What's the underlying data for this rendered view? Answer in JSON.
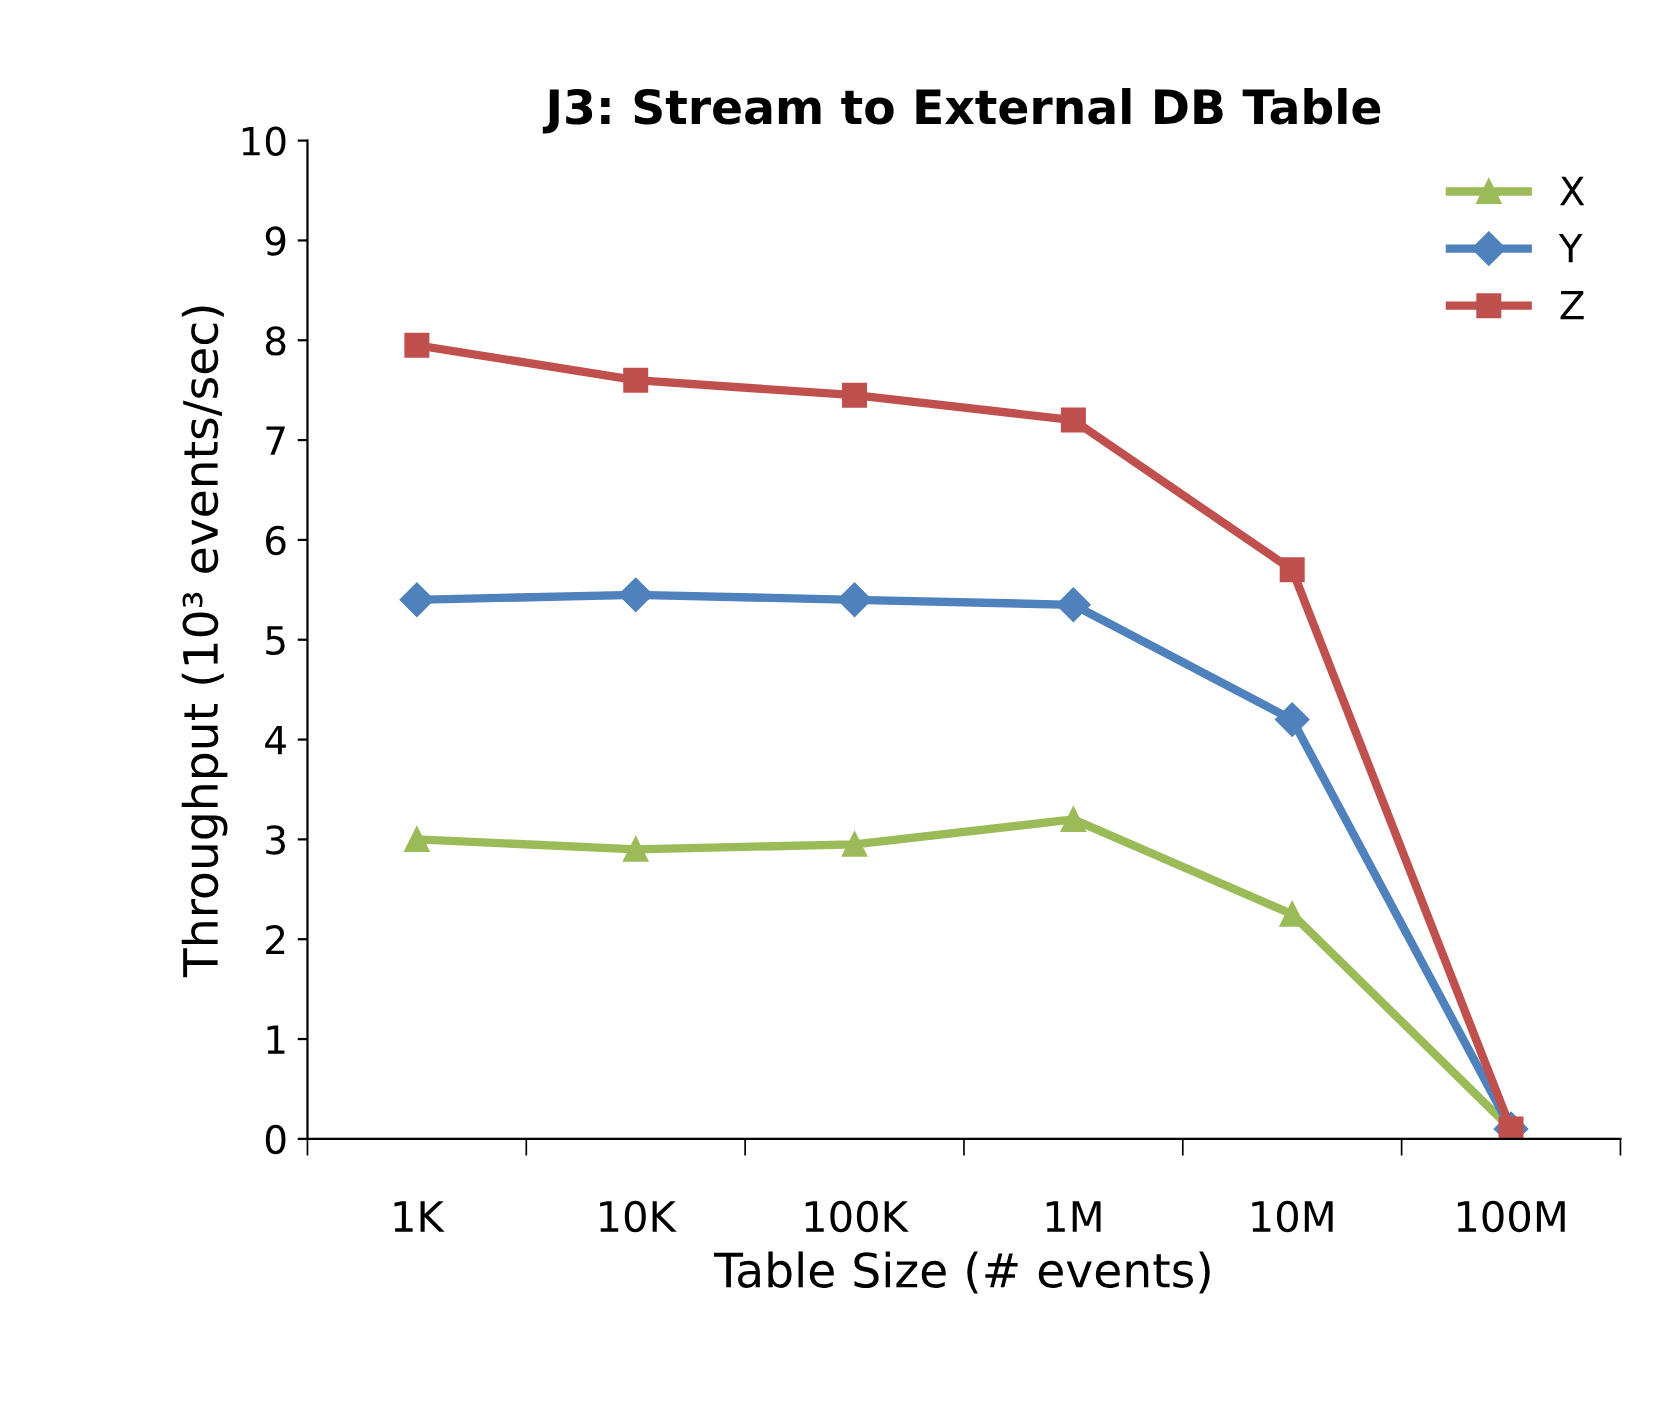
{
  "chart_data": {
    "type": "line",
    "title": "J3: Stream to External DB Table",
    "xlabel": "Table Size (# events)",
    "ylabel": "Throughput (10³ events/sec)",
    "categories": [
      "1K",
      "10K",
      "100K",
      "1M",
      "10M",
      "100M"
    ],
    "series": [
      {
        "name": "X",
        "color": "#9bbb59",
        "marker": "triangle",
        "values": [
          3.0,
          2.9,
          2.95,
          3.2,
          2.25,
          0.1
        ]
      },
      {
        "name": "Y",
        "color": "#4f81bd",
        "marker": "diamond",
        "values": [
          5.4,
          5.45,
          5.4,
          5.35,
          4.2,
          0.1
        ]
      },
      {
        "name": "Z",
        "color": "#c0504d",
        "marker": "square",
        "values": [
          7.95,
          7.6,
          7.45,
          7.2,
          5.7,
          0.1
        ]
      }
    ],
    "ylim": [
      0,
      10
    ],
    "yticks": [
      0,
      1,
      2,
      3,
      4,
      5,
      6,
      7,
      8,
      9,
      10
    ],
    "grid": false,
    "legend": "top right",
    "line_style": "solid"
  }
}
